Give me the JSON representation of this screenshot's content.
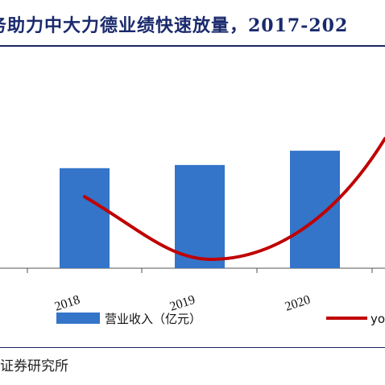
{
  "header": {
    "title": "务助力中大力德业绩快速放量，2017-202",
    "source": "证券研究所"
  },
  "chart_data": {
    "type": "bar",
    "categories": [
      "2018",
      "2019",
      "2020"
    ],
    "series": [
      {
        "name": "营业收入（亿元）",
        "type": "bar",
        "color": "#3474c9",
        "values": [
          6.3,
          6.5,
          7.4
        ]
      },
      {
        "name": "yo",
        "type": "line",
        "color": "#c00000",
        "values": [
          4.5,
          0.4,
          4.6
        ]
      }
    ],
    "ylim": [
      0,
      14
    ],
    "grid": false,
    "legend": "bottom"
  }
}
